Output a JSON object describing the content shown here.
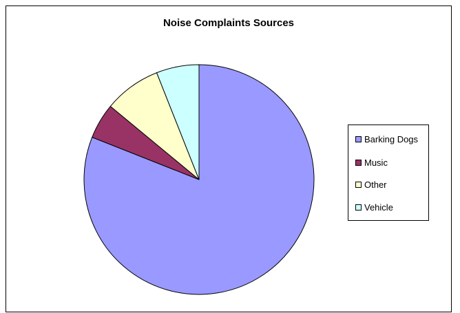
{
  "chart_data": {
    "type": "pie",
    "title": "Noise Complaints Sources",
    "categories": [
      "Barking Dogs",
      "Music",
      "Other",
      "Vehicle"
    ],
    "values": [
      81,
      5,
      8,
      6
    ],
    "colors": [
      "#9999ff",
      "#993366",
      "#ffffcc",
      "#ccffff"
    ],
    "legend_position": "right",
    "start_angle": "12 o'clock",
    "direction": "clockwise"
  }
}
